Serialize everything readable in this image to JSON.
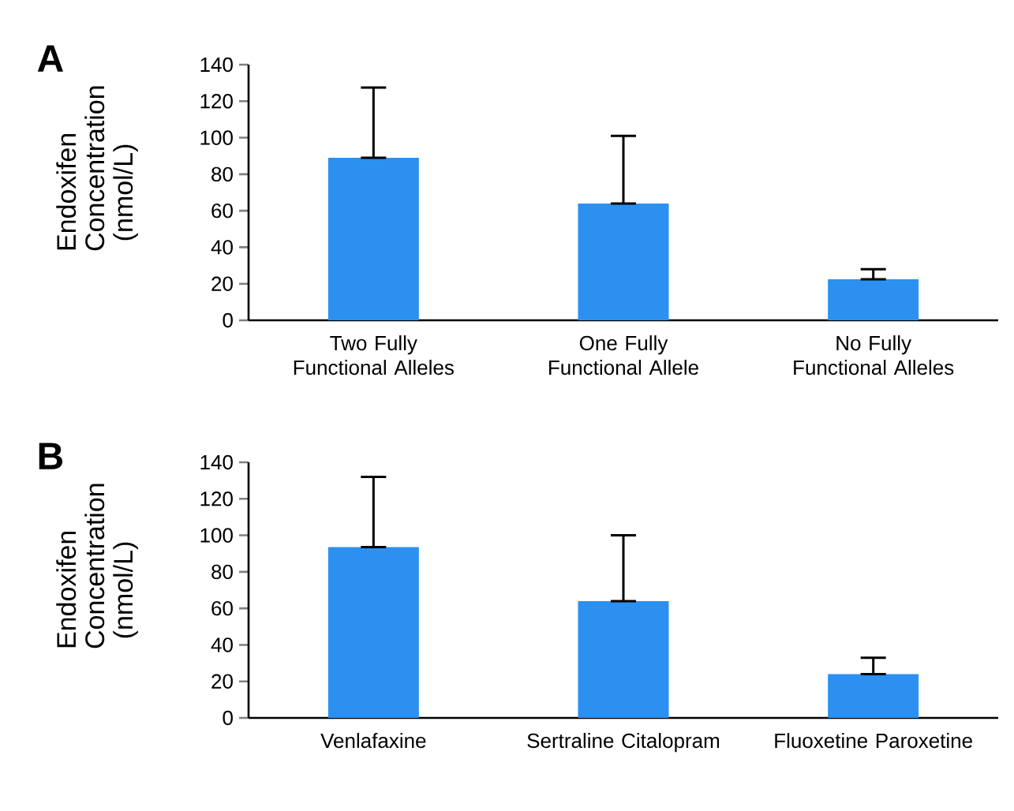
{
  "chart_data": [
    {
      "type": "bar",
      "title": "A",
      "ylabel": "Endoxifen Concentration (nmol/L)",
      "categories": [
        "Two Fully Functional Alleles",
        "One Fully Functional Allele",
        "No Fully Functional Alleles"
      ],
      "values": [
        89,
        64,
        22.5
      ],
      "errors": [
        [
          89,
          127.5
        ],
        [
          64,
          101
        ],
        [
          22.5,
          28
        ]
      ],
      "color": "#2b90f0",
      "ylim": [
        0,
        140
      ],
      "yticks": [
        0,
        20,
        40,
        60,
        80,
        100,
        120,
        140
      ]
    },
    {
      "type": "bar",
      "title": "B",
      "ylabel": "Endoxifen Concentration (nmol/L)",
      "categories": [
        "Venlafaxine",
        "Sertraline Citalopram",
        "Fluoxetine Paroxetine"
      ],
      "values": [
        93.5,
        64,
        24
      ],
      "errors": [
        [
          93.5,
          132
        ],
        [
          64,
          100
        ],
        [
          24,
          33
        ]
      ],
      "color": "#2b90f0",
      "ylim": [
        0,
        140
      ],
      "yticks": [
        0,
        20,
        40,
        60,
        80,
        100,
        120,
        140
      ]
    }
  ]
}
